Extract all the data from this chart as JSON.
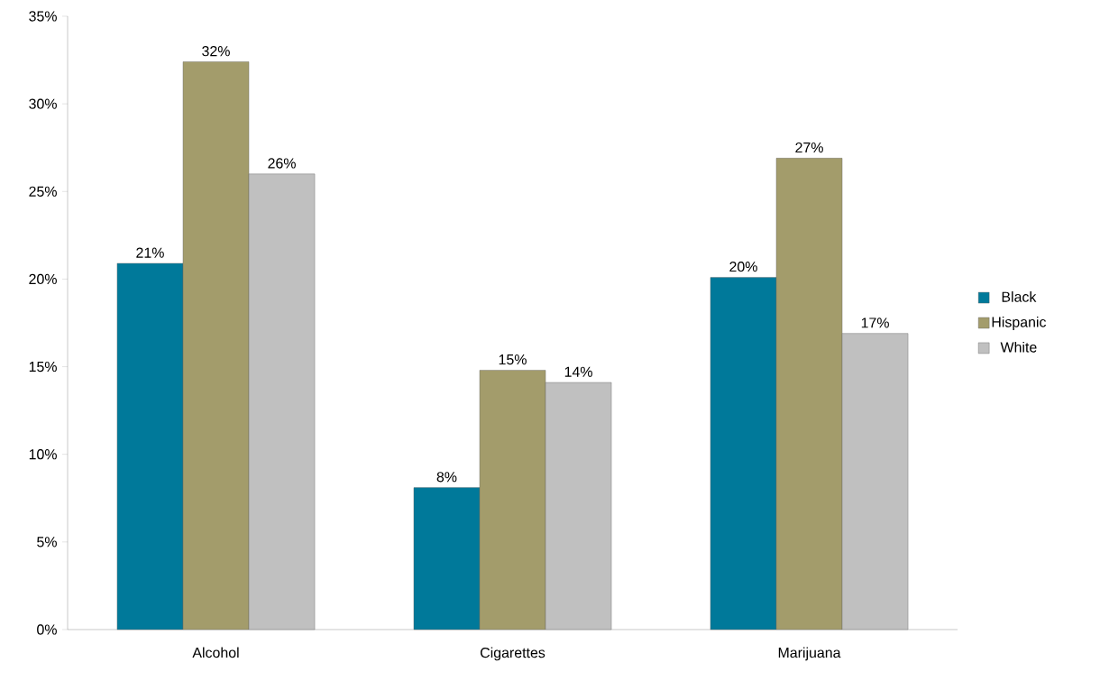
{
  "chart_data": {
    "type": "bar",
    "categories": [
      "Alcohol",
      "Cigarettes",
      "Marijuana"
    ],
    "series": [
      {
        "name": "Black",
        "color": "#00799a",
        "values": [
          20.9,
          8.1,
          20.1
        ],
        "value_labels": [
          "21%",
          "8%",
          "20%"
        ]
      },
      {
        "name": "Hispanic",
        "color": "#a39c6b",
        "values": [
          32.4,
          14.8,
          26.9
        ],
        "value_labels": [
          "32%",
          "15%",
          "27%"
        ]
      },
      {
        "name": "White",
        "color": "#c0c0c0",
        "values": [
          26.0,
          14.1,
          16.9
        ],
        "value_labels": [
          "26%",
          "14%",
          "17%"
        ]
      }
    ],
    "ylim": [
      0,
      35
    ],
    "yticks": [
      {
        "value": 0,
        "label": "0%"
      },
      {
        "value": 5,
        "label": "5%"
      },
      {
        "value": 10,
        "label": "10%"
      },
      {
        "value": 15,
        "label": "15%"
      },
      {
        "value": 20,
        "label": "20%"
      },
      {
        "value": 25,
        "label": "25%"
      },
      {
        "value": 30,
        "label": "30%"
      },
      {
        "value": 35,
        "label": "35%"
      }
    ],
    "grid": false,
    "legend": "right"
  }
}
